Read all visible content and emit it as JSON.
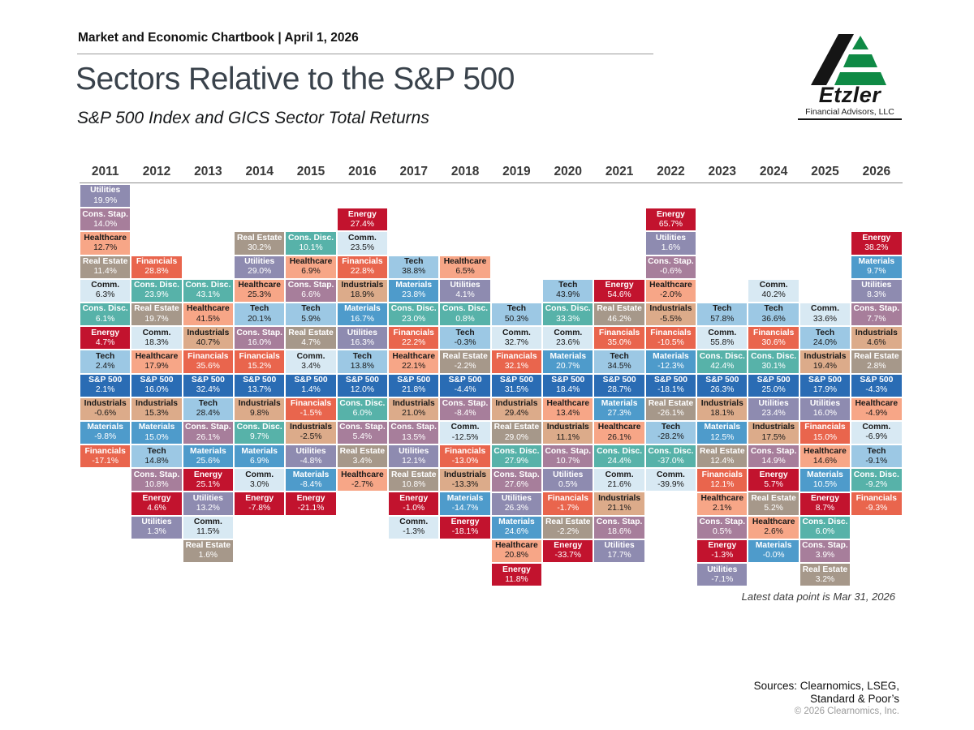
{
  "header": {
    "chartbook": "Market and Economic Chartbook | April 1, 2026",
    "title": "Sectors Relative to the S&P 500",
    "subtitle": "S&P 500 Index and GICS Sector Total Returns"
  },
  "logo": {
    "name": "Etzler",
    "tagline": "Financial Advisors, LLC",
    "colors": {
      "black": "#151515",
      "green": "#0f8a45"
    }
  },
  "footnote": "Latest data point is Mar 31, 2026",
  "sources": [
    "Sources: Clearnomics, LSEG,",
    "Standard & Poor’s"
  ],
  "copyright": "© 2026 Clearnomics, Inc.",
  "sector_styles": {
    "Utilities": {
      "bg": "#8e8bb0",
      "fg": "#ffffff"
    },
    "Cons. Stap.": {
      "bg": "#a77e9b",
      "fg": "#ffffff"
    },
    "Healthcare": {
      "bg": "#f7a687",
      "fg": "#1a1a1a"
    },
    "Real Estate": {
      "bg": "#a6988a",
      "fg": "#ffffff"
    },
    "Comm.": {
      "bg": "#d8e9f3",
      "fg": "#1a1a1a"
    },
    "Cons. Disc.": {
      "bg": "#57b2a9",
      "fg": "#ffffff"
    },
    "Energy": {
      "bg": "#c2132e",
      "fg": "#ffffff"
    },
    "Tech": {
      "bg": "#9cc8e4",
      "fg": "#1a1a1a"
    },
    "S&P 500": {
      "bg": "#2a6cb4",
      "fg": "#ffffff"
    },
    "Industrials": {
      "bg": "#dcab8a",
      "fg": "#1a1a1a"
    },
    "Materials": {
      "bg": "#4e9bcb",
      "fg": "#ffffff"
    },
    "Financials": {
      "bg": "#e9654d",
      "fg": "#ffffff"
    }
  },
  "chart_data": {
    "type": "table",
    "title": "Sectors Relative to the S&P 500",
    "subtitle": "S&P 500 Index and GICS Sector Total Returns",
    "layout": "sector-quilt aligned on S&P 500 row; sectors above the S&P 500 tile outperformed the index that year, sectors below underperformed",
    "max_tiles_above_sp500": 8,
    "years": [
      "2011",
      "2012",
      "2013",
      "2014",
      "2015",
      "2016",
      "2017",
      "2018",
      "2019",
      "2020",
      "2021",
      "2022",
      "2023",
      "2024",
      "2025",
      "2026"
    ],
    "columns": [
      {
        "year": "2011",
        "entries": [
          {
            "name": "Utilities",
            "value": "19.9%"
          },
          {
            "name": "Cons. Stap.",
            "value": "14.0%"
          },
          {
            "name": "Healthcare",
            "value": "12.7%"
          },
          {
            "name": "Real Estate",
            "value": "11.4%"
          },
          {
            "name": "Comm.",
            "value": "6.3%"
          },
          {
            "name": "Cons. Disc.",
            "value": "6.1%"
          },
          {
            "name": "Energy",
            "value": "4.7%"
          },
          {
            "name": "Tech",
            "value": "2.4%"
          },
          {
            "name": "S&P 500",
            "value": "2.1%"
          },
          {
            "name": "Industrials",
            "value": "-0.6%"
          },
          {
            "name": "Materials",
            "value": "-9.8%"
          },
          {
            "name": "Financials",
            "value": "-17.1%"
          }
        ]
      },
      {
        "year": "2012",
        "entries": [
          {
            "name": "Financials",
            "value": "28.8%"
          },
          {
            "name": "Cons. Disc.",
            "value": "23.9%"
          },
          {
            "name": "Real Estate",
            "value": "19.7%"
          },
          {
            "name": "Comm.",
            "value": "18.3%"
          },
          {
            "name": "Healthcare",
            "value": "17.9%"
          },
          {
            "name": "S&P 500",
            "value": "16.0%"
          },
          {
            "name": "Industrials",
            "value": "15.3%"
          },
          {
            "name": "Materials",
            "value": "15.0%"
          },
          {
            "name": "Tech",
            "value": "14.8%"
          },
          {
            "name": "Cons. Stap.",
            "value": "10.8%"
          },
          {
            "name": "Energy",
            "value": "4.6%"
          },
          {
            "name": "Utilities",
            "value": "1.3%"
          }
        ]
      },
      {
        "year": "2013",
        "entries": [
          {
            "name": "Cons. Disc.",
            "value": "43.1%"
          },
          {
            "name": "Healthcare",
            "value": "41.5%"
          },
          {
            "name": "Industrials",
            "value": "40.7%"
          },
          {
            "name": "Financials",
            "value": "35.6%"
          },
          {
            "name": "S&P 500",
            "value": "32.4%"
          },
          {
            "name": "Tech",
            "value": "28.4%"
          },
          {
            "name": "Cons. Stap.",
            "value": "26.1%"
          },
          {
            "name": "Materials",
            "value": "25.6%"
          },
          {
            "name": "Energy",
            "value": "25.1%"
          },
          {
            "name": "Utilities",
            "value": "13.2%"
          },
          {
            "name": "Comm.",
            "value": "11.5%"
          },
          {
            "name": "Real Estate",
            "value": "1.6%"
          }
        ]
      },
      {
        "year": "2014",
        "entries": [
          {
            "name": "Real Estate",
            "value": "30.2%"
          },
          {
            "name": "Utilities",
            "value": "29.0%"
          },
          {
            "name": "Healthcare",
            "value": "25.3%"
          },
          {
            "name": "Tech",
            "value": "20.1%"
          },
          {
            "name": "Cons. Stap.",
            "value": "16.0%"
          },
          {
            "name": "Financials",
            "value": "15.2%"
          },
          {
            "name": "S&P 500",
            "value": "13.7%"
          },
          {
            "name": "Industrials",
            "value": "9.8%"
          },
          {
            "name": "Cons. Disc.",
            "value": "9.7%"
          },
          {
            "name": "Materials",
            "value": "6.9%"
          },
          {
            "name": "Comm.",
            "value": "3.0%"
          },
          {
            "name": "Energy",
            "value": "-7.8%"
          }
        ]
      },
      {
        "year": "2015",
        "entries": [
          {
            "name": "Cons. Disc.",
            "value": "10.1%"
          },
          {
            "name": "Healthcare",
            "value": "6.9%"
          },
          {
            "name": "Cons. Stap.",
            "value": "6.6%"
          },
          {
            "name": "Tech",
            "value": "5.9%"
          },
          {
            "name": "Real Estate",
            "value": "4.7%"
          },
          {
            "name": "Comm.",
            "value": "3.4%"
          },
          {
            "name": "S&P 500",
            "value": "1.4%"
          },
          {
            "name": "Financials",
            "value": "-1.5%"
          },
          {
            "name": "Industrials",
            "value": "-2.5%"
          },
          {
            "name": "Utilities",
            "value": "-4.8%"
          },
          {
            "name": "Materials",
            "value": "-8.4%"
          },
          {
            "name": "Energy",
            "value": "-21.1%"
          }
        ]
      },
      {
        "year": "2016",
        "entries": [
          {
            "name": "Energy",
            "value": "27.4%"
          },
          {
            "name": "Comm.",
            "value": "23.5%"
          },
          {
            "name": "Financials",
            "value": "22.8%"
          },
          {
            "name": "Industrials",
            "value": "18.9%"
          },
          {
            "name": "Materials",
            "value": "16.7%"
          },
          {
            "name": "Utilities",
            "value": "16.3%"
          },
          {
            "name": "Tech",
            "value": "13.8%"
          },
          {
            "name": "S&P 500",
            "value": "12.0%"
          },
          {
            "name": "Cons. Disc.",
            "value": "6.0%"
          },
          {
            "name": "Cons. Stap.",
            "value": "5.4%"
          },
          {
            "name": "Real Estate",
            "value": "3.4%"
          },
          {
            "name": "Healthcare",
            "value": "-2.7%"
          }
        ]
      },
      {
        "year": "2017",
        "entries": [
          {
            "name": "Tech",
            "value": "38.8%"
          },
          {
            "name": "Materials",
            "value": "23.8%"
          },
          {
            "name": "Cons. Disc.",
            "value": "23.0%"
          },
          {
            "name": "Financials",
            "value": "22.2%"
          },
          {
            "name": "Healthcare",
            "value": "22.1%"
          },
          {
            "name": "S&P 500",
            "value": "21.8%"
          },
          {
            "name": "Industrials",
            "value": "21.0%"
          },
          {
            "name": "Cons. Stap.",
            "value": "13.5%"
          },
          {
            "name": "Utilities",
            "value": "12.1%"
          },
          {
            "name": "Real Estate",
            "value": "10.8%"
          },
          {
            "name": "Energy",
            "value": "-1.0%"
          },
          {
            "name": "Comm.",
            "value": "-1.3%"
          }
        ]
      },
      {
        "year": "2018",
        "entries": [
          {
            "name": "Healthcare",
            "value": "6.5%"
          },
          {
            "name": "Utilities",
            "value": "4.1%"
          },
          {
            "name": "Cons. Disc.",
            "value": "0.8%"
          },
          {
            "name": "Tech",
            "value": "-0.3%"
          },
          {
            "name": "Real Estate",
            "value": "-2.2%"
          },
          {
            "name": "S&P 500",
            "value": "-4.4%"
          },
          {
            "name": "Cons. Stap.",
            "value": "-8.4%"
          },
          {
            "name": "Comm.",
            "value": "-12.5%"
          },
          {
            "name": "Financials",
            "value": "-13.0%"
          },
          {
            "name": "Industrials",
            "value": "-13.3%"
          },
          {
            "name": "Materials",
            "value": "-14.7%"
          },
          {
            "name": "Energy",
            "value": "-18.1%"
          }
        ]
      },
      {
        "year": "2019",
        "entries": [
          {
            "name": "Tech",
            "value": "50.3%"
          },
          {
            "name": "Comm.",
            "value": "32.7%"
          },
          {
            "name": "Financials",
            "value": "32.1%"
          },
          {
            "name": "S&P 500",
            "value": "31.5%"
          },
          {
            "name": "Industrials",
            "value": "29.4%"
          },
          {
            "name": "Real Estate",
            "value": "29.0%"
          },
          {
            "name": "Cons. Disc.",
            "value": "27.9%"
          },
          {
            "name": "Cons. Stap.",
            "value": "27.6%"
          },
          {
            "name": "Utilities",
            "value": "26.3%"
          },
          {
            "name": "Materials",
            "value": "24.6%"
          },
          {
            "name": "Healthcare",
            "value": "20.8%"
          },
          {
            "name": "Energy",
            "value": "11.8%"
          }
        ]
      },
      {
        "year": "2020",
        "entries": [
          {
            "name": "Tech",
            "value": "43.9%"
          },
          {
            "name": "Cons. Disc.",
            "value": "33.3%"
          },
          {
            "name": "Comm.",
            "value": "23.6%"
          },
          {
            "name": "Materials",
            "value": "20.7%"
          },
          {
            "name": "S&P 500",
            "value": "18.4%"
          },
          {
            "name": "Healthcare",
            "value": "13.4%"
          },
          {
            "name": "Industrials",
            "value": "11.1%"
          },
          {
            "name": "Cons. Stap.",
            "value": "10.7%"
          },
          {
            "name": "Utilities",
            "value": "0.5%"
          },
          {
            "name": "Financials",
            "value": "-1.7%"
          },
          {
            "name": "Real Estate",
            "value": "-2.2%"
          },
          {
            "name": "Energy",
            "value": "-33.7%"
          }
        ]
      },
      {
        "year": "2021",
        "entries": [
          {
            "name": "Energy",
            "value": "54.6%"
          },
          {
            "name": "Real Estate",
            "value": "46.2%"
          },
          {
            "name": "Financials",
            "value": "35.0%"
          },
          {
            "name": "Tech",
            "value": "34.5%"
          },
          {
            "name": "S&P 500",
            "value": "28.7%"
          },
          {
            "name": "Materials",
            "value": "27.3%"
          },
          {
            "name": "Healthcare",
            "value": "26.1%"
          },
          {
            "name": "Cons. Disc.",
            "value": "24.4%"
          },
          {
            "name": "Comm.",
            "value": "21.6%"
          },
          {
            "name": "Industrials",
            "value": "21.1%"
          },
          {
            "name": "Cons. Stap.",
            "value": "18.6%"
          },
          {
            "name": "Utilities",
            "value": "17.7%"
          }
        ]
      },
      {
        "year": "2022",
        "entries": [
          {
            "name": "Energy",
            "value": "65.7%"
          },
          {
            "name": "Utilities",
            "value": "1.6%"
          },
          {
            "name": "Cons. Stap.",
            "value": "-0.6%"
          },
          {
            "name": "Healthcare",
            "value": "-2.0%"
          },
          {
            "name": "Industrials",
            "value": "-5.5%"
          },
          {
            "name": "Financials",
            "value": "-10.5%"
          },
          {
            "name": "Materials",
            "value": "-12.3%"
          },
          {
            "name": "S&P 500",
            "value": "-18.1%"
          },
          {
            "name": "Real Estate",
            "value": "-26.1%"
          },
          {
            "name": "Tech",
            "value": "-28.2%"
          },
          {
            "name": "Cons. Disc.",
            "value": "-37.0%"
          },
          {
            "name": "Comm.",
            "value": "-39.9%"
          }
        ]
      },
      {
        "year": "2023",
        "entries": [
          {
            "name": "Tech",
            "value": "57.8%"
          },
          {
            "name": "Comm.",
            "value": "55.8%"
          },
          {
            "name": "Cons. Disc.",
            "value": "42.4%"
          },
          {
            "name": "S&P 500",
            "value": "26.3%"
          },
          {
            "name": "Industrials",
            "value": "18.1%"
          },
          {
            "name": "Materials",
            "value": "12.5%"
          },
          {
            "name": "Real Estate",
            "value": "12.4%"
          },
          {
            "name": "Financials",
            "value": "12.1%"
          },
          {
            "name": "Healthcare",
            "value": "2.1%"
          },
          {
            "name": "Cons. Stap.",
            "value": "0.5%"
          },
          {
            "name": "Energy",
            "value": "-1.3%"
          },
          {
            "name": "Utilities",
            "value": "-7.1%"
          }
        ]
      },
      {
        "year": "2024",
        "entries": [
          {
            "name": "Comm.",
            "value": "40.2%"
          },
          {
            "name": "Tech",
            "value": "36.6%"
          },
          {
            "name": "Financials",
            "value": "30.6%"
          },
          {
            "name": "Cons. Disc.",
            "value": "30.1%"
          },
          {
            "name": "S&P 500",
            "value": "25.0%"
          },
          {
            "name": "Utilities",
            "value": "23.4%"
          },
          {
            "name": "Industrials",
            "value": "17.5%"
          },
          {
            "name": "Cons. Stap.",
            "value": "14.9%"
          },
          {
            "name": "Energy",
            "value": "5.7%"
          },
          {
            "name": "Real Estate",
            "value": "5.2%"
          },
          {
            "name": "Healthcare",
            "value": "2.6%"
          },
          {
            "name": "Materials",
            "value": "-0.0%"
          }
        ]
      },
      {
        "year": "2025",
        "entries": [
          {
            "name": "Comm.",
            "value": "33.6%"
          },
          {
            "name": "Tech",
            "value": "24.0%"
          },
          {
            "name": "Industrials",
            "value": "19.4%"
          },
          {
            "name": "S&P 500",
            "value": "17.9%"
          },
          {
            "name": "Utilities",
            "value": "16.0%"
          },
          {
            "name": "Financials",
            "value": "15.0%"
          },
          {
            "name": "Healthcare",
            "value": "14.6%"
          },
          {
            "name": "Materials",
            "value": "10.5%"
          },
          {
            "name": "Energy",
            "value": "8.7%"
          },
          {
            "name": "Cons. Disc.",
            "value": "6.0%"
          },
          {
            "name": "Cons. Stap.",
            "value": "3.9%"
          },
          {
            "name": "Real Estate",
            "value": "3.2%"
          }
        ]
      },
      {
        "year": "2026",
        "entries": [
          {
            "name": "Energy",
            "value": "38.2%"
          },
          {
            "name": "Materials",
            "value": "9.7%"
          },
          {
            "name": "Utilities",
            "value": "8.3%"
          },
          {
            "name": "Cons. Stap.",
            "value": "7.7%"
          },
          {
            "name": "Industrials",
            "value": "4.6%"
          },
          {
            "name": "Real Estate",
            "value": "2.8%"
          },
          {
            "name": "S&P 500",
            "value": "-4.3%"
          },
          {
            "name": "Healthcare",
            "value": "-4.9%"
          },
          {
            "name": "Comm.",
            "value": "-6.9%"
          },
          {
            "name": "Tech",
            "value": "-9.1%"
          },
          {
            "name": "Cons. Disc.",
            "value": "-9.2%"
          },
          {
            "name": "Financials",
            "value": "-9.3%"
          }
        ]
      }
    ]
  }
}
